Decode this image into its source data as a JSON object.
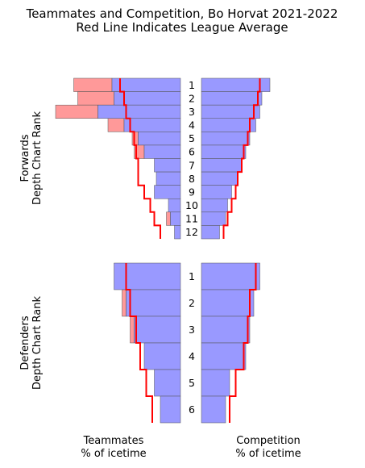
{
  "chart_data": {
    "type": "bar",
    "title": "Teammates and Competition, Bo Horvat 2021-2022",
    "subtitle": "Red Line Indicates League Average",
    "panels": [
      {
        "group": "forwards",
        "ylabel_line1": "Forwards",
        "ylabel_line2": "Depth Chart Rank",
        "ranks": [
          "1",
          "2",
          "3",
          "4",
          "5",
          "6",
          "7",
          "8",
          "9",
          "10",
          "11",
          "12"
        ],
        "teammates_pct": [
          34,
          33,
          41,
          28,
          21,
          18,
          13,
          12,
          13,
          6,
          5,
          3
        ],
        "teammates_excess_pct": [
          19,
          18,
          21,
          8,
          3,
          5,
          0,
          0,
          0,
          0,
          2,
          0
        ],
        "teammates_league_avg_pct": [
          30,
          28,
          27,
          25,
          23,
          22,
          21,
          21,
          18,
          15,
          13,
          10
        ],
        "competition_pct": [
          34,
          30,
          29,
          27,
          24,
          22,
          20,
          18,
          15,
          13,
          12,
          9
        ],
        "competition_league_avg_pct": [
          29,
          28,
          26,
          24,
          23,
          21,
          20,
          18,
          17,
          15,
          13,
          11
        ]
      },
      {
        "group": "defenders",
        "ylabel_line1": "Defenders",
        "ylabel_line2": "Depth Chart Rank",
        "ranks": [
          "1",
          "2",
          "3",
          "4",
          "5",
          "6"
        ],
        "teammates_pct": [
          33,
          27,
          23,
          18,
          13,
          10
        ],
        "teammates_excess_pct": [
          0,
          2,
          2,
          0,
          0,
          0
        ],
        "teammates_league_avg_pct": [
          27,
          25,
          22,
          20,
          17,
          14
        ],
        "competition_pct": [
          29,
          26,
          24,
          22,
          14,
          12
        ],
        "competition_league_avg_pct": [
          27,
          24,
          23,
          21,
          17,
          14
        ]
      }
    ],
    "xlabel_left_line1": "Teammates",
    "xlabel_left_line2": "% of icetime",
    "xlabel_right_line1": "Competition",
    "xlabel_right_line2": "% of icetime",
    "colors": {
      "bar": "#9999ff",
      "excess": "#ff9999",
      "league_avg_line": "#ff0000",
      "bar_edge": "#555555"
    }
  }
}
